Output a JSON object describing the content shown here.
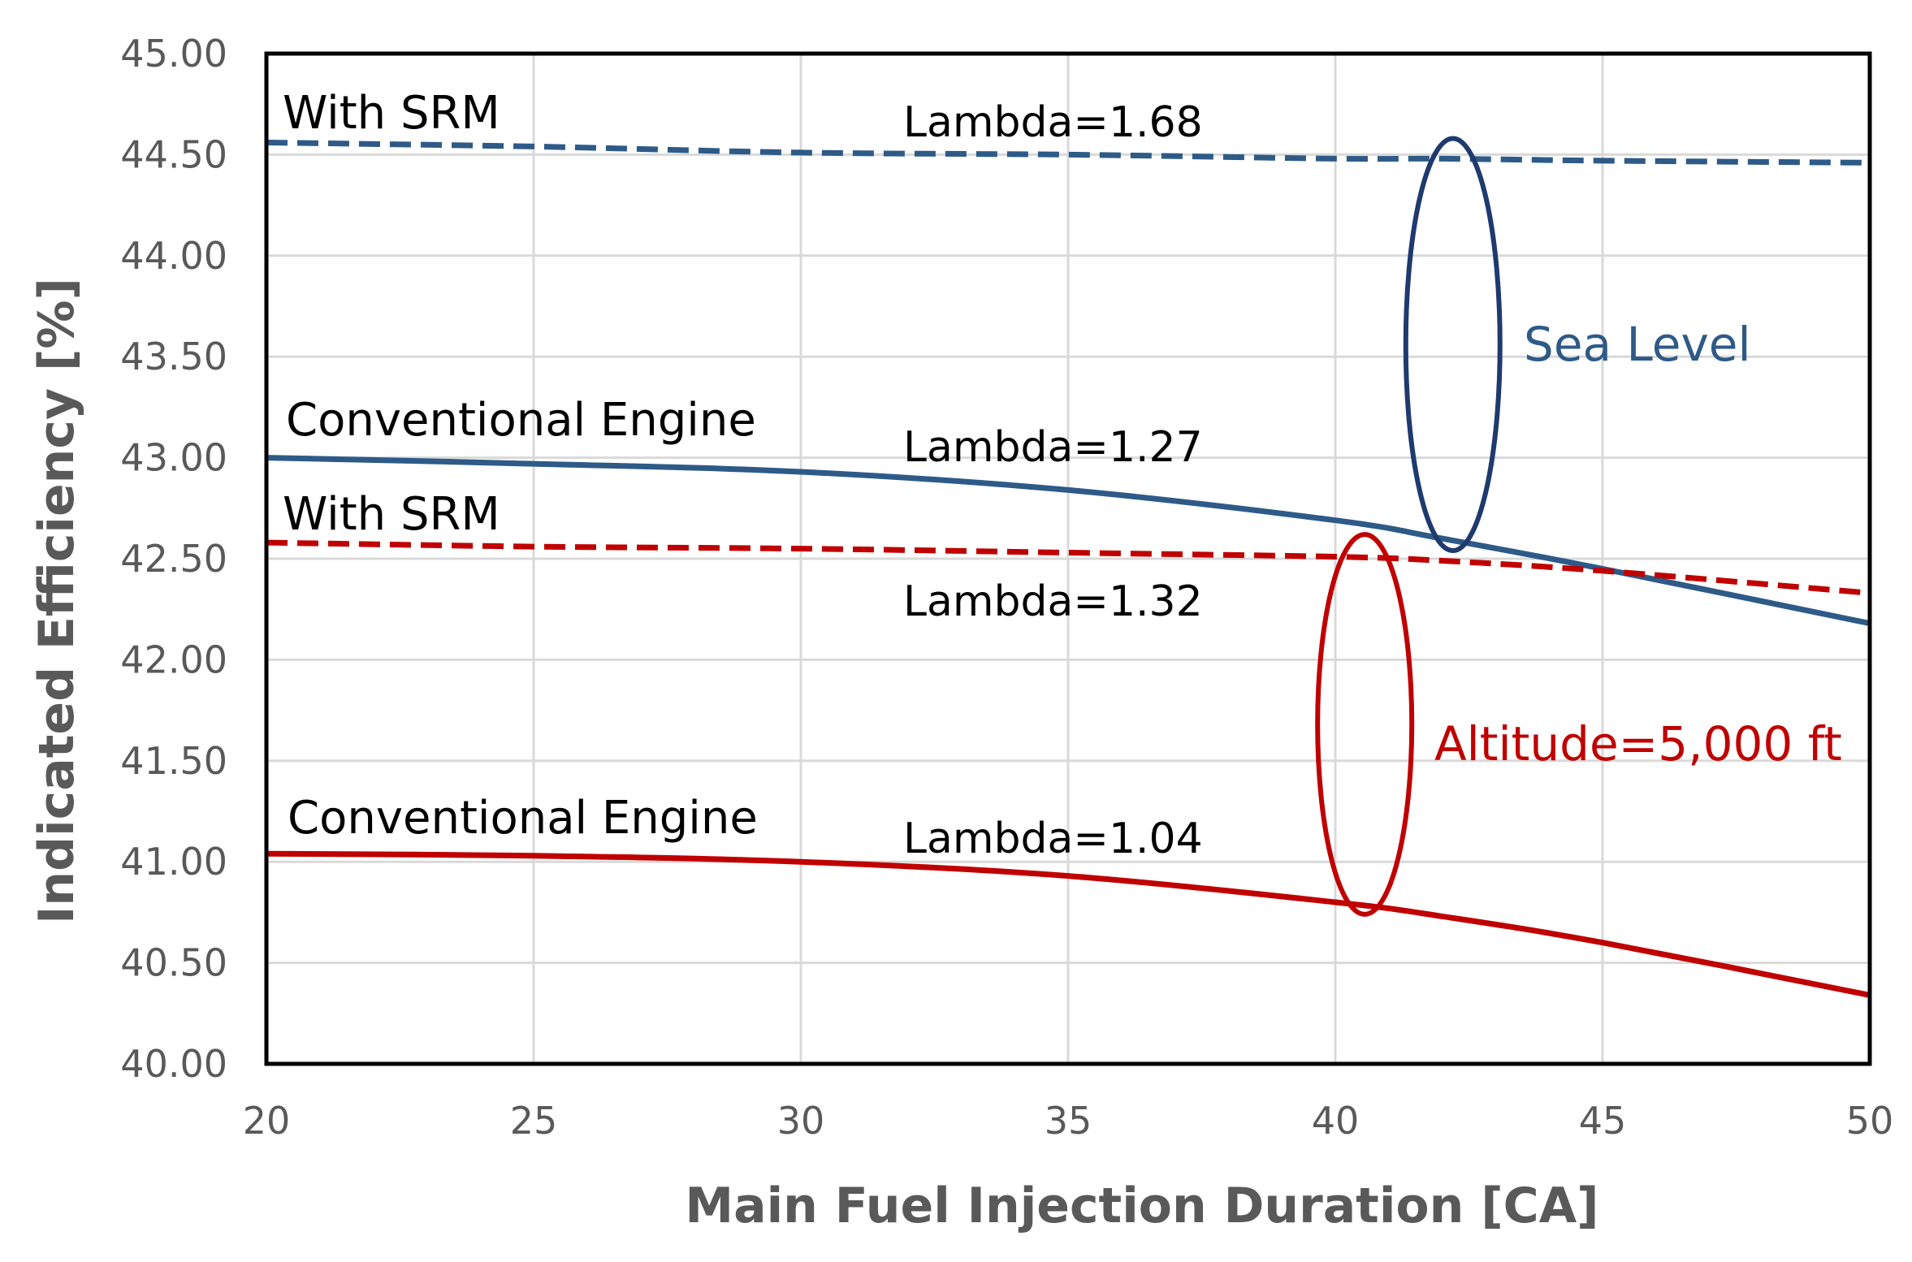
{
  "chart_data": {
    "type": "line",
    "title": "",
    "xlabel": "Main Fuel Injection Duration [CA]",
    "ylabel": "Indicated Efficiency [%]",
    "xlim": [
      20,
      50
    ],
    "ylim": [
      40.0,
      45.0
    ],
    "xticks": [
      "20",
      "25",
      "30",
      "35",
      "40",
      "45",
      "50"
    ],
    "yticks": [
      "40.00",
      "40.50",
      "41.00",
      "41.50",
      "42.00",
      "42.50",
      "43.00",
      "43.50",
      "44.00",
      "44.50",
      "45.00"
    ],
    "grid": true,
    "x": [
      20,
      25,
      30,
      35,
      40,
      42,
      45,
      50
    ],
    "series": [
      {
        "name": "Sea Level With SRM",
        "label": "With SRM",
        "lambda_label": "Lambda=1.68",
        "style": "dashed",
        "color": "#2e5a88",
        "values": [
          44.56,
          44.54,
          44.51,
          44.5,
          44.48,
          44.48,
          44.47,
          44.46
        ]
      },
      {
        "name": "Sea Level Conventional Engine",
        "label": "Conventional Engine",
        "lambda_label": "Lambda=1.27",
        "style": "solid",
        "color": "#2e5a88",
        "values": [
          43.0,
          42.97,
          42.93,
          42.84,
          42.69,
          42.6,
          42.45,
          42.18
        ]
      },
      {
        "name": "Altitude With SRM",
        "label": "With SRM",
        "lambda_label": "Lambda=1.32",
        "style": "dashed",
        "color": "#c00000",
        "values": [
          42.58,
          42.56,
          42.55,
          42.53,
          42.51,
          42.49,
          42.44,
          42.33
        ]
      },
      {
        "name": "Altitude Conventional Engine",
        "label": "Conventional Engine",
        "lambda_label": "Lambda=1.04",
        "style": "solid",
        "color": "#c00000",
        "values": [
          41.04,
          41.03,
          41.0,
          40.93,
          40.8,
          40.73,
          40.6,
          40.34
        ]
      }
    ],
    "groups": [
      {
        "label": "Sea Level",
        "color": "#2e5a88",
        "ellipse_color": "#1f3a6e",
        "x_center": 42.2,
        "y_center": 43.56,
        "y_half_range": 1.02
      },
      {
        "label": "Altitude=5,000 ft",
        "color": "#c00000",
        "ellipse_color": "#c00000",
        "x_center": 40.55,
        "y_center": 41.68,
        "y_half_range": 0.94
      }
    ]
  }
}
